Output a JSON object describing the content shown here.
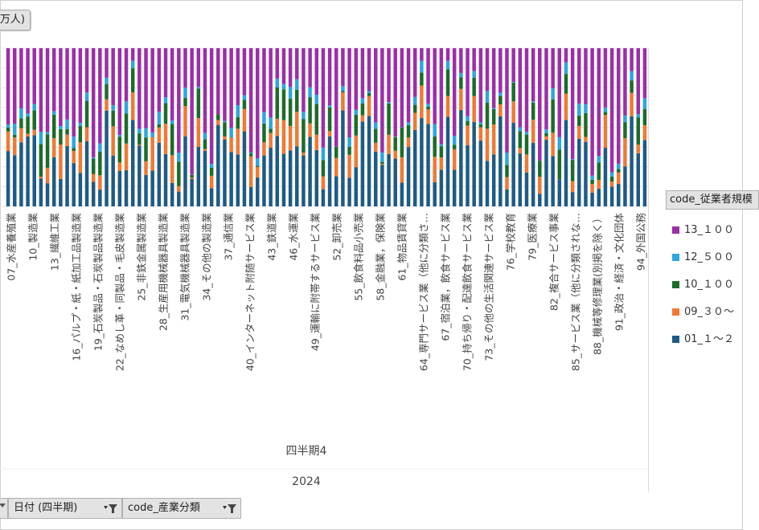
{
  "unit_label": "万人)",
  "legend": {
    "title": "code_従業者規模",
    "items": [
      {
        "label": "13_１００",
        "color": "#9b2fa8"
      },
      {
        "label": "12_５００",
        "color": "#2ea6de"
      },
      {
        "label": "10_１００",
        "color": "#1d6b2a"
      },
      {
        "label": "09_３０～",
        "color": "#ee7a34"
      },
      {
        "label": "01_１～２",
        "color": "#1f5a85"
      }
    ]
  },
  "axis": {
    "quarter": "四半期4",
    "year": "2024"
  },
  "filters": [
    {
      "label": "日付 (四半期)"
    },
    {
      "label": "code_産業分類"
    }
  ],
  "chart_data": {
    "type": "bar",
    "stacked": true,
    "percent": true,
    "ylim": [
      0,
      100
    ],
    "series_order": [
      "01_１～２",
      "09_３０～",
      "10_１００",
      "12_５００",
      "13_１００"
    ],
    "x_labels_shown": [
      "07_水産養殖業",
      "10_製造業",
      "13_繊維工業",
      "16_パルプ・紙・紙加工品製造業",
      "19_石炭製品・石炭製品製造業",
      "22_なめし革・同製品・毛皮製造業",
      "25_非鉄金属製造業",
      "28_生産用機械器具製造業",
      "31_電気機械器具製造業",
      "34_その他の製造業",
      "37_通信業",
      "40_インターネット附随サービス業",
      "43_鉄道業",
      "46_水運業",
      "49_運輸に附帯するサービス業",
      "52_卸売業",
      "55_飲食料品小売業",
      "58_金融業，保険業",
      "61_物品賃貸業",
      "64_専門サービス業（他に分類さ…",
      "67_宿泊業，飲食サービス業",
      "70_持ち帰り・配達飲食サービス業",
      "73_その他の生活関連サービス業",
      "76_学校教育",
      "79_医療業",
      "82_複合サービス事業",
      "85_サービス業（他に分類されな…",
      "88_機械等修理業(別掲を除く）",
      "91_政治・経済・文化団体",
      "94_外国公務"
    ]
  }
}
